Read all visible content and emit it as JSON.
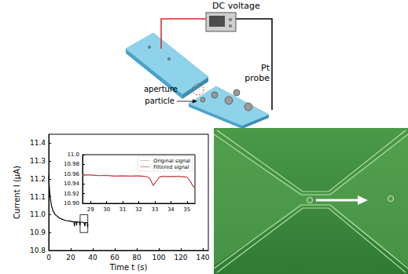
{
  "schematic": {
    "source_label": "DC voltage",
    "aperture_label": "aperture",
    "particle_label": "particle",
    "probe_label": [
      "Pt",
      "probe"
    ]
  },
  "chart_data": [
    {
      "type": "line",
      "x_label": "Time t (s)",
      "y_label": "Current I (μA)",
      "x": [
        0,
        0.3,
        0.7,
        1,
        1.5,
        2,
        2.5,
        3,
        4,
        5,
        6,
        7,
        8,
        10,
        12,
        14,
        16,
        18,
        20,
        22,
        23,
        23.3,
        23.6,
        25,
        25.3,
        25.6,
        27,
        28,
        28.3,
        28.6,
        30,
        32,
        32.9,
        33.1,
        33.4,
        34,
        35,
        35.3,
        35.6
      ],
      "values": [
        11.22,
        11.18,
        11.14,
        11.12,
        11.09,
        11.07,
        11.05,
        11.04,
        11.02,
        11.01,
        11.0,
        10.995,
        10.99,
        10.98,
        10.975,
        10.97,
        10.967,
        10.965,
        10.963,
        10.961,
        10.96,
        10.935,
        10.96,
        10.96,
        10.94,
        10.96,
        10.959,
        10.959,
        10.94,
        10.958,
        10.958,
        10.957,
        10.936,
        10.952,
        10.957,
        10.956,
        10.955,
        10.932,
        10.945
      ],
      "color": "#000000",
      "xlim": [
        0,
        145
      ],
      "ylim": [
        10.8,
        11.45
      ],
      "xticks": [
        0,
        20,
        40,
        60,
        80,
        100,
        120,
        140
      ],
      "yticks": [
        10.8,
        10.9,
        {
          "value": 11,
          "label": "11.0"
        },
        11.1,
        11.2,
        11.3,
        11.4
      ],
      "grid": false
    },
    {
      "type": "line",
      "x": [
        28.5,
        29,
        29.5,
        30,
        30.5,
        31,
        31.5,
        32,
        32.5,
        32.7,
        32.9,
        33.1,
        33.3,
        33.5,
        34,
        34.5,
        35,
        35.2,
        35.4,
        35.5
      ],
      "series": [
        {
          "name": "Original signal",
          "color": "#9e9e9e",
          "values": [
            10.958,
            10.959,
            10.957,
            10.958,
            10.956,
            10.957,
            10.956,
            10.957,
            10.955,
            10.95,
            10.936,
            10.945,
            10.955,
            10.956,
            10.955,
            10.956,
            10.954,
            10.945,
            10.933,
            10.935
          ]
        },
        {
          "name": "Filtered signal",
          "color": "#d62728",
          "values": [
            10.958,
            10.958,
            10.957,
            10.957,
            10.956,
            10.956,
            10.956,
            10.956,
            10.955,
            10.951,
            10.937,
            10.946,
            10.954,
            10.955,
            10.955,
            10.955,
            10.954,
            10.946,
            10.934,
            10.935
          ]
        }
      ],
      "xlim": [
        28.5,
        35.5
      ],
      "ylim": [
        10.9,
        11.0
      ],
      "xticks": [
        29,
        30,
        31,
        32,
        33,
        34,
        35
      ],
      "yticks": [
        {
          "value": 10.9,
          "label": "10.90"
        },
        10.92,
        10.94,
        10.96,
        10.98,
        {
          "value": 11,
          "label": "11.0"
        }
      ],
      "legend": "upper right",
      "grid": false
    }
  ]
}
